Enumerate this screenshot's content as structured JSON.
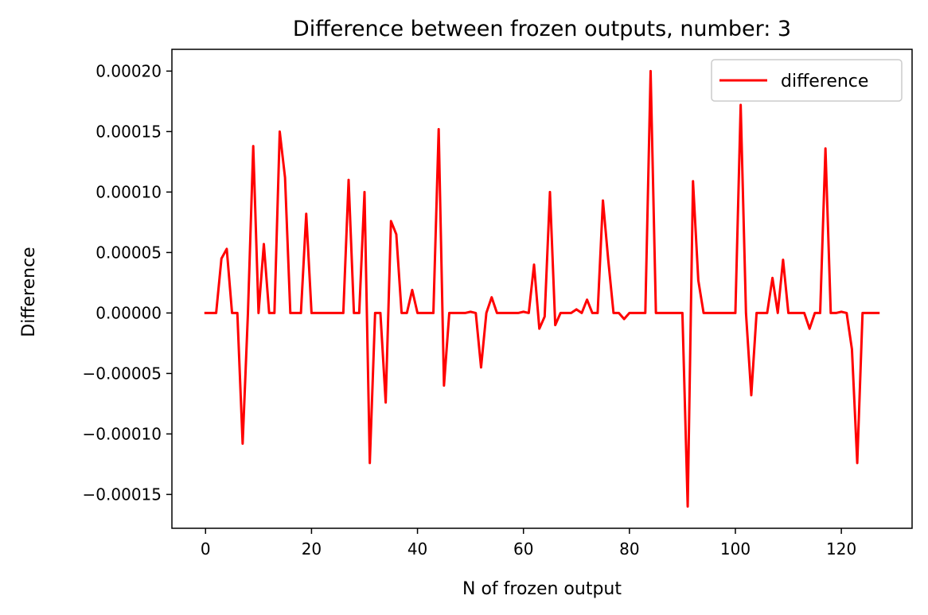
{
  "chart_data": {
    "type": "line",
    "title": "Difference between frozen outputs, number: 3",
    "xlabel": "N of frozen output",
    "ylabel": "Difference",
    "xlim": [
      -6.35,
      133.35
    ],
    "ylim": [
      -0.000178,
      0.000218
    ],
    "xticks": [
      0,
      20,
      40,
      60,
      80,
      100,
      120
    ],
    "yticks": [
      0.0002,
      0.00015,
      0.0001,
      5e-05,
      0.0,
      -5e-05,
      -0.0001,
      -0.00015
    ],
    "xtick_labels": [
      "0",
      "20",
      "40",
      "60",
      "80",
      "100",
      "120"
    ],
    "ytick_labels": [
      "0.00020",
      "0.00015",
      "0.00010",
      "0.00005",
      "0.00000",
      "−0.00005",
      "−0.00010",
      "−0.00015"
    ],
    "grid": false,
    "legend_position": "upper-right",
    "series": [
      {
        "name": "difference",
        "color": "#ff0000",
        "x": [
          0,
          1,
          2,
          3,
          4,
          5,
          6,
          7,
          8,
          9,
          10,
          11,
          12,
          13,
          14,
          15,
          16,
          17,
          18,
          19,
          20,
          21,
          22,
          23,
          24,
          25,
          26,
          27,
          28,
          29,
          30,
          31,
          32,
          33,
          34,
          35,
          36,
          37,
          38,
          39,
          40,
          41,
          42,
          43,
          44,
          45,
          46,
          47,
          48,
          49,
          50,
          51,
          52,
          53,
          54,
          55,
          56,
          57,
          58,
          59,
          60,
          61,
          62,
          63,
          64,
          65,
          66,
          67,
          68,
          69,
          70,
          71,
          72,
          73,
          74,
          75,
          76,
          77,
          78,
          79,
          80,
          81,
          82,
          83,
          84,
          85,
          86,
          87,
          88,
          89,
          90,
          91,
          92,
          93,
          94,
          95,
          96,
          97,
          98,
          99,
          100,
          101,
          102,
          103,
          104,
          105,
          106,
          107,
          108,
          109,
          110,
          111,
          112,
          113,
          114,
          115,
          116,
          117,
          118,
          119,
          120,
          121,
          122,
          123,
          124,
          125,
          126,
          127
        ],
        "y": [
          0,
          0,
          0,
          4.5e-05,
          5.3e-05,
          0,
          0,
          -0.000108,
          0,
          0.000138,
          0,
          5.7e-05,
          0,
          0,
          0.00015,
          0.000112,
          0,
          0,
          0,
          8.2e-05,
          0,
          0,
          0,
          0,
          0,
          0,
          0,
          0.00011,
          0,
          0,
          0.0001,
          -0.000124,
          0,
          0,
          -7.4e-05,
          7.6e-05,
          6.5e-05,
          0,
          0,
          1.9e-05,
          0,
          0,
          0,
          0,
          0.000152,
          -6e-05,
          0,
          0,
          0,
          0,
          1e-06,
          0,
          -4.5e-05,
          0,
          1.3e-05,
          0,
          0,
          0,
          0,
          0,
          1e-06,
          0,
          4e-05,
          -1.3e-05,
          -3e-06,
          0.0001,
          -1e-05,
          0,
          0,
          0,
          3e-06,
          0,
          1.1e-05,
          0,
          0,
          9.3e-05,
          4.4e-05,
          0,
          0,
          -5e-06,
          0,
          0,
          0,
          0,
          0.0002,
          0,
          0,
          0,
          0,
          0,
          0,
          -0.00016,
          0.000109,
          2.7e-05,
          0,
          0,
          0,
          0,
          0,
          0,
          0,
          0.000172,
          0,
          -6.8e-05,
          0,
          0,
          0,
          2.9e-05,
          0,
          4.4e-05,
          0,
          0,
          0,
          0,
          -1.3e-05,
          0,
          0,
          0.000136,
          0,
          0,
          1e-06,
          0,
          -3e-05,
          -0.000124,
          0,
          0,
          0,
          0
        ]
      }
    ]
  }
}
